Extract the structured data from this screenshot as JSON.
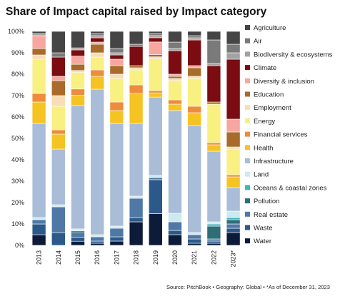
{
  "header": {
    "title": "Share of Impact capital raised by Impact category"
  },
  "footer": {
    "source": "Source: PitchBook  •  Geography: Global  •  *As of December 31, 2023"
  },
  "chart_data": {
    "type": "bar",
    "stacked": true,
    "orientation": "vertical",
    "title": "Share of Impact capital raised by Impact category",
    "xlabel": "",
    "ylabel": "",
    "ylim": [
      0,
      100
    ],
    "y_ticks": [
      "0%",
      "10%",
      "20%",
      "30%",
      "40%",
      "50%",
      "60%",
      "70%",
      "80%",
      "90%",
      "100%"
    ],
    "categories": [
      "2013",
      "2014",
      "2015",
      "2016",
      "2017",
      "2018",
      "2019",
      "2020",
      "2021",
      "2022",
      "2023*"
    ],
    "legend_position": "right",
    "grid": false,
    "series": [
      {
        "name": "Water",
        "color": "#0d1b3a",
        "values": [
          5,
          0,
          2,
          1,
          2,
          11,
          15,
          5,
          1,
          1,
          6
        ]
      },
      {
        "name": "Waste",
        "color": "#2b5a8a",
        "values": [
          5,
          6,
          2,
          1,
          2,
          2,
          16,
          2,
          2,
          1,
          2
        ]
      },
      {
        "name": "Real estate",
        "color": "#4f78a6",
        "values": [
          2,
          12,
          2,
          2,
          4,
          9,
          1,
          4,
          2,
          1,
          2
        ]
      },
      {
        "name": "Pollution",
        "color": "#2f6e78",
        "values": [
          0,
          0,
          1,
          0,
          0,
          0,
          0,
          0,
          0,
          6,
          2
        ]
      },
      {
        "name": "Oceans & coastal zones",
        "color": "#3ab7c5",
        "values": [
          0,
          0,
          0,
          0,
          0,
          0,
          0,
          0,
          0,
          1,
          1
        ]
      },
      {
        "name": "Land",
        "color": "#cdeaec",
        "values": [
          1,
          1,
          1,
          1,
          1,
          1,
          1,
          4,
          1,
          1,
          3
        ]
      },
      {
        "name": "Infrastructure",
        "color": "#a9bdd8",
        "values": [
          44,
          26,
          60,
          68,
          48,
          34,
          37,
          48,
          50,
          33,
          11
        ]
      },
      {
        "name": "Health",
        "color": "#f5c322",
        "values": [
          10,
          7,
          5,
          6,
          6,
          14,
          2,
          3,
          6,
          3,
          5
        ]
      },
      {
        "name": "Financial services",
        "color": "#ee8c3c",
        "values": [
          4,
          2,
          3,
          3,
          4,
          4,
          1,
          2,
          3,
          1,
          1
        ]
      },
      {
        "name": "Energy",
        "color": "#f8f080",
        "values": [
          16,
          11,
          8,
          6,
          11,
          7,
          15,
          9,
          13,
          18,
          12
        ]
      },
      {
        "name": "Employment",
        "color": "#f8ddb5",
        "values": [
          2,
          5,
          1,
          2,
          2,
          1,
          1,
          1,
          1,
          0,
          1
        ]
      },
      {
        "name": "Education",
        "color": "#a86b2a",
        "values": [
          3,
          7,
          3,
          4,
          4,
          1,
          1,
          1,
          4,
          1,
          7
        ]
      },
      {
        "name": "Diversity & inclusion",
        "color": "#f7a7a0",
        "values": [
          6,
          2,
          4,
          1,
          3,
          0,
          6,
          1,
          1,
          0,
          6
        ]
      },
      {
        "name": "Climate",
        "color": "#7a0c12",
        "values": [
          0,
          9,
          3,
          2,
          2,
          9,
          2,
          11,
          12,
          17,
          28
        ]
      },
      {
        "name": "Biodiversity & ecosystems",
        "color": "#a2a2a2",
        "values": [
          1,
          0,
          1,
          1,
          1,
          0,
          1,
          1,
          1,
          1,
          3
        ]
      },
      {
        "name": "Air",
        "color": "#7a7a7a",
        "values": [
          0,
          2,
          0,
          1,
          2,
          1,
          1,
          3,
          1,
          11,
          4
        ]
      },
      {
        "name": "Agriculture",
        "color": "#454545",
        "values": [
          1,
          10,
          8,
          1,
          8,
          6,
          1,
          5,
          2,
          4,
          6
        ]
      }
    ]
  }
}
